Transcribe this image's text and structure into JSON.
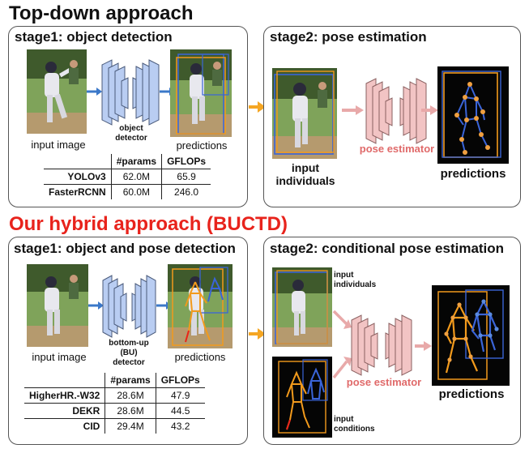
{
  "top_down": {
    "heading": "Top-down approach",
    "stage1": {
      "title": "stage1: object detection",
      "input_label": "input image",
      "detector_label_1": "object",
      "detector_label_2": "detector",
      "predictions_label": "predictions",
      "table": {
        "headers": [
          "",
          "#params",
          "GFLOPs"
        ],
        "rows": [
          {
            "model": "YOLOv3",
            "params": "62.0M",
            "gflops": "65.9"
          },
          {
            "model": "FasterRCNN",
            "params": "60.0M",
            "gflops": "246.0"
          }
        ]
      }
    },
    "stage2": {
      "title": "stage2: pose estimation",
      "input_label_1": "input",
      "input_label_2": "individuals",
      "estimator_label": "pose estimator",
      "predictions_label": "predictions"
    }
  },
  "hybrid": {
    "heading": "Our hybrid approach (BUCTD)",
    "heading_color": "#e8231c",
    "stage1": {
      "title": "stage1: object and pose detection",
      "input_label": "input image",
      "detector_label_1": "bottom-up",
      "detector_label_2": "(BU)",
      "detector_label_3": "detector",
      "predictions_label": "predictions",
      "table": {
        "headers": [
          "",
          "#params",
          "GFLOPs"
        ],
        "rows": [
          {
            "model": "HigherHR.-W32",
            "params": "28.6M",
            "gflops": "47.9"
          },
          {
            "model": "DEKR",
            "params": "28.6M",
            "gflops": "44.5"
          },
          {
            "model": "CID",
            "params": "29.4M",
            "gflops": "43.2"
          }
        ]
      }
    },
    "stage2": {
      "title": "stage2: conditional pose estimation",
      "individuals_label_1": "input",
      "individuals_label_2": "individuals",
      "conditions_label_1": "input",
      "conditions_label_2": "conditions",
      "estimator_label": "pose estimator",
      "predictions_label": "predictions"
    }
  },
  "colors": {
    "detector_blue": "#b9cdf2",
    "estimator_pink": "#f2c4c4",
    "flow_arrow_orange": "#f5a623",
    "blue_arrow": "#3b78c9",
    "pink_arrow": "#e8a9a9",
    "box_blue": "#3a64d8",
    "box_orange": "#f29a1c"
  }
}
